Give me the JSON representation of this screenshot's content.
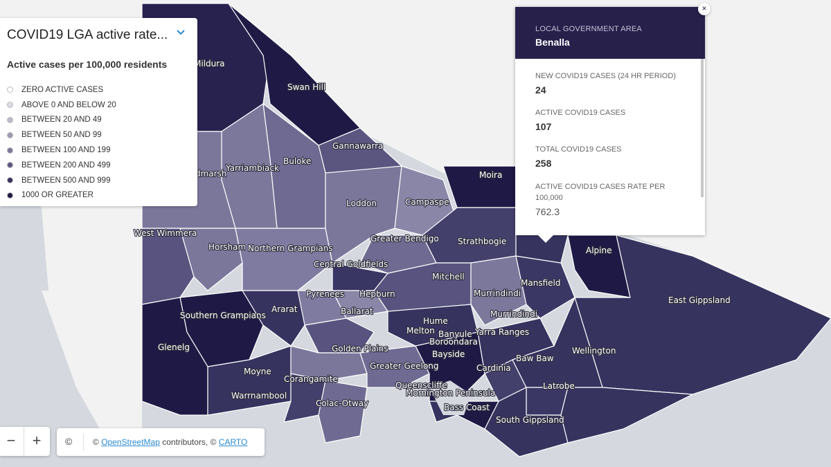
{
  "legend": {
    "title": "COVID19 LGA active rate...",
    "subtitle": "Active cases per 100,000 residents",
    "items": [
      {
        "label": "ZERO ACTIVE CASES",
        "color": "#ffffff"
      },
      {
        "label": "ABOVE 0 AND BELOW 20",
        "color": "#dcdae3"
      },
      {
        "label": "BETWEEN 20 AND 49",
        "color": "#bdbacb"
      },
      {
        "label": "BETWEEN 50 AND 99",
        "color": "#9d99b3"
      },
      {
        "label": "BETWEEN 100 AND 199",
        "color": "#7b779b"
      },
      {
        "label": "BETWEEN 200 AND 499",
        "color": "#58547f"
      },
      {
        "label": "BETWEEN 500 AND 999",
        "color": "#37335f"
      },
      {
        "label": "1000 OR GREATER",
        "color": "#1f1a45"
      }
    ]
  },
  "popup": {
    "header_label": "LOCAL GOVERNMENT AREA",
    "header_value": "Benalla",
    "close_icon": "×",
    "fields": [
      {
        "label": "NEW COVID19 CASES (24 HR PERIOD)",
        "value": "24"
      },
      {
        "label": "ACTIVE COVID19 CASES",
        "value": "107"
      },
      {
        "label": "TOTAL COVID19 CASES",
        "value": "258"
      },
      {
        "label": "ACTIVE COVID19 CASES RATE PER 100,000",
        "value": "762.3"
      }
    ]
  },
  "zoom": {
    "zoom_out": "−",
    "zoom_in": "+"
  },
  "attribution": {
    "info_icon": "©",
    "prefix": "© ",
    "osm_link": "OpenStreetMap",
    "middle": " contributors, © ",
    "carto_link": "CARTO"
  },
  "map_labels": {
    "mildura": "Mildura",
    "swan_hill": "Swan Hill",
    "gannawarra": "Gannawarra",
    "buloke": "Buloke",
    "yarriambiack": "Yarriambiack",
    "hindmarsh": "Hindmarsh",
    "loddon": "Loddon",
    "campaspe": "Campaspe",
    "moira": "Moira",
    "west_wimmera": "West Wimmera",
    "horsham": "Horsham",
    "northern_grampians": "Northern Grampians",
    "greater_bendigo": "Greater Bendigo",
    "strathbogie": "Strathbogie",
    "central_goldfields": "Central Goldfields",
    "alpine": "Alpine",
    "mitchell": "Mitchell",
    "pyrenees": "Pyrenees",
    "hepburn": "Hepburn",
    "mansfield": "Mansfield",
    "murrindindi_1": "Murrindindi",
    "murrindindi_2": "Murrindindi",
    "east_gippsland": "East Gippsland",
    "southern_grampians": "Southern Grampians",
    "ararat": "Ararat",
    "ballarat": "Ballarat",
    "hume": "Hume",
    "melton": "Melton",
    "banyule": "Banyule",
    "yarra_ranges": "Yarra Ranges",
    "boroondara": "Boroondara",
    "glenelg": "Glenelg",
    "golden_plains": "Golden Plains",
    "bayside": "Bayside",
    "baw_baw": "Baw Baw",
    "wellington": "Wellington",
    "greater_geelong": "Greater Geelong",
    "cardinia": "Cardinia",
    "moyne": "Moyne",
    "corangamite": "Corangamite",
    "queenscliffe": "Queenscliffe",
    "mornington_peninsula": "Mornington Peninsula",
    "latrobe": "Latrobe",
    "warrnambool": "Warrnambool",
    "bass_coast": "Bass Coast",
    "colac_otway": "Colac-Otway",
    "south_gippsland": "South Gippsland"
  }
}
